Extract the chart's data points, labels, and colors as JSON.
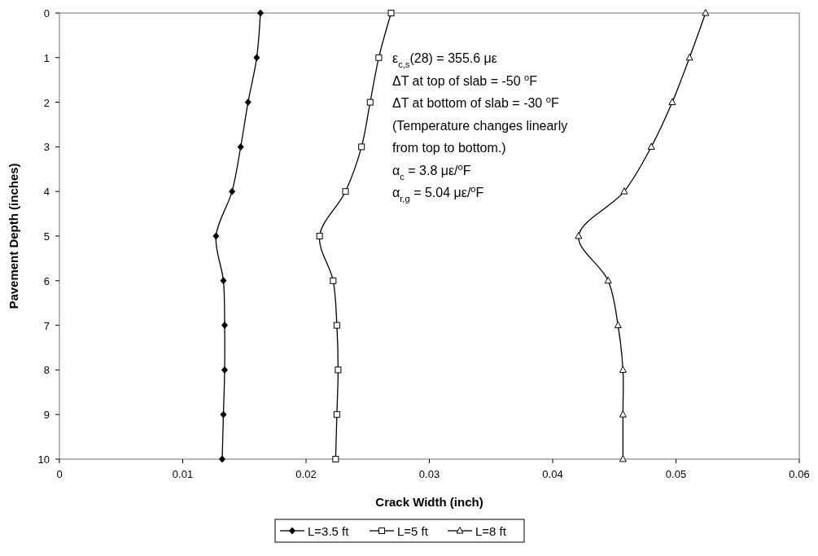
{
  "chart_data": {
    "type": "line",
    "xlabel": "Crack Width (inch)",
    "ylabel": "Pavement Depth (inches)",
    "xlim": [
      0,
      0.06
    ],
    "xticks": [
      0,
      0.01,
      0.02,
      0.03,
      0.04,
      0.05,
      0.06
    ],
    "ylim": [
      10,
      0
    ],
    "yticks": [
      0,
      1,
      2,
      3,
      4,
      5,
      6,
      7,
      8,
      9,
      10
    ],
    "grid": false,
    "legend": "bottom",
    "line_style": "solid",
    "series": [
      {
        "name": "L=3.5 ft",
        "color": "#000000",
        "marker": "diamond",
        "x": [
          0.0163,
          0.016,
          0.0153,
          0.0147,
          0.014,
          0.0127,
          0.0133,
          0.0134,
          0.0134,
          0.0133,
          0.0132
        ],
        "values": [
          0,
          1,
          2,
          3,
          4,
          5,
          6,
          7,
          8,
          9,
          10
        ]
      },
      {
        "name": "L=5 ft",
        "color": "#000000",
        "marker": "square",
        "x": [
          0.0269,
          0.0259,
          0.0252,
          0.0245,
          0.0232,
          0.0211,
          0.0222,
          0.0225,
          0.0226,
          0.0225,
          0.0224
        ],
        "values": [
          0,
          1,
          2,
          3,
          4,
          5,
          6,
          7,
          8,
          9,
          10
        ]
      },
      {
        "name": "L=8 ft",
        "color": "#000000",
        "marker": "triangle",
        "x": [
          0.0524,
          0.0511,
          0.0497,
          0.048,
          0.0458,
          0.0421,
          0.0445,
          0.0453,
          0.0457,
          0.0457,
          0.0457
        ],
        "values": [
          0,
          1,
          2,
          3,
          4,
          5,
          6,
          7,
          8,
          9,
          10
        ]
      }
    ],
    "annotations": [
      "ε$_{c,s}$(28) = 355.6 με",
      "ΔT at top of slab = -50 $^{o}$F",
      "ΔT  at bottom of slab = -30  $^{o}$F",
      "(Temperature changes linearly",
      "from top to bottom.)",
      "α$_{c}$ = 3.8 με/$^{o}$F",
      "α$_{r,g}$ = 5.04 με/$^{o}$F"
    ]
  }
}
